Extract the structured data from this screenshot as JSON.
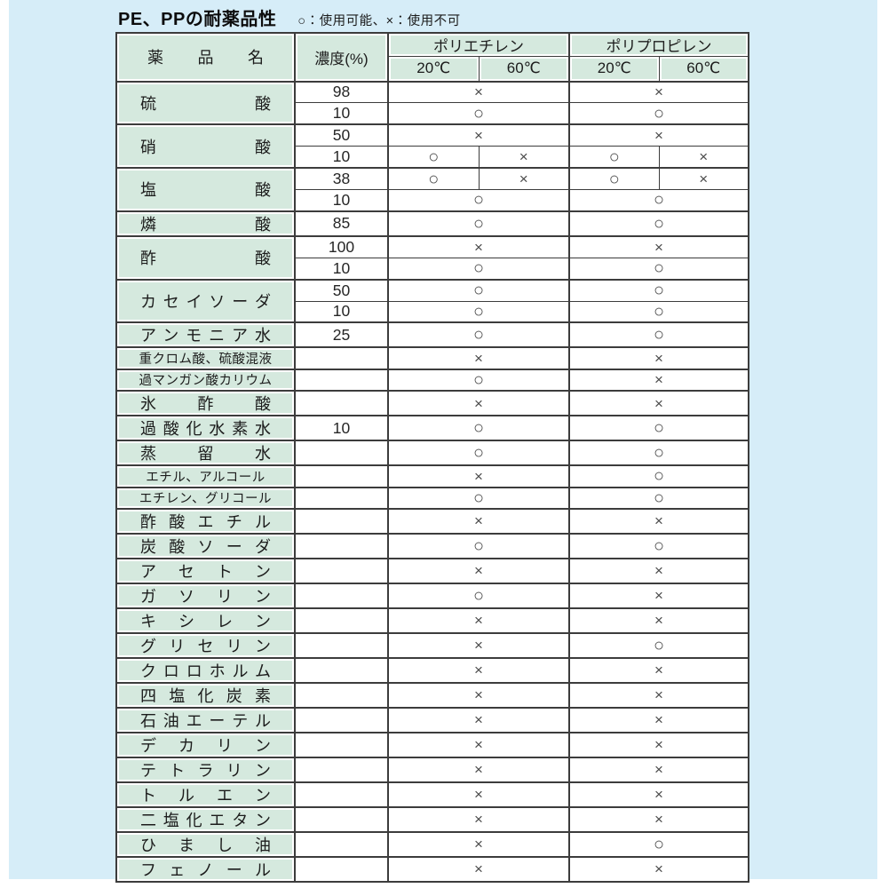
{
  "page": {
    "title": "PE、PPの耐薬品性",
    "legend": "○：使用可能、×：使用不可"
  },
  "table": {
    "headers": {
      "chemical": "薬品名",
      "concentration": "濃度(%)",
      "polyethylene": "ポリエチレン",
      "polypropylene": "ポリプロピレン",
      "temp_20": "20℃",
      "temp_60": "60℃"
    },
    "symbols": {
      "usable": "○",
      "not_usable": "×"
    },
    "groups": [
      {
        "name": "硫酸",
        "sub": [
          {
            "conc": "98",
            "pe": "×",
            "pp": "×"
          },
          {
            "conc": "10",
            "pe": "○",
            "pp": "○"
          }
        ]
      },
      {
        "name": "硝酸",
        "sub": [
          {
            "conc": "50",
            "pe": "×",
            "pp": "×"
          },
          {
            "conc": "10",
            "pe": [
              "○",
              "×"
            ],
            "pp": [
              "○",
              "×"
            ]
          }
        ]
      },
      {
        "name": "塩酸",
        "sub": [
          {
            "conc": "38",
            "pe": [
              "○",
              "×"
            ],
            "pp": [
              "○",
              "×"
            ]
          },
          {
            "conc": "10",
            "pe": "○",
            "pp": "○"
          }
        ]
      },
      {
        "name": "燐酸",
        "sub": [
          {
            "conc": "85",
            "pe": "○",
            "pp": "○"
          }
        ]
      },
      {
        "name": "酢酸",
        "sub": [
          {
            "conc": "100",
            "pe": "×",
            "pp": "×"
          },
          {
            "conc": "10",
            "pe": "○",
            "pp": "○"
          }
        ]
      },
      {
        "name": "カセイソーダ",
        "sub": [
          {
            "conc": "50",
            "pe": "○",
            "pp": "○"
          },
          {
            "conc": "10",
            "pe": "○",
            "pp": "○"
          }
        ]
      },
      {
        "name": "アンモニア水",
        "sub": [
          {
            "conc": "25",
            "pe": "○",
            "pp": "○"
          }
        ]
      },
      {
        "name": "重クロム酸、硫酸混液",
        "sub": [
          {
            "conc": "",
            "pe": "×",
            "pp": "×"
          }
        ]
      },
      {
        "name": "過マンガン酸カリウム",
        "sub": [
          {
            "conc": "",
            "pe": "○",
            "pp": "×"
          }
        ]
      },
      {
        "name": "氷酢酸",
        "sub": [
          {
            "conc": "",
            "pe": "×",
            "pp": "×"
          }
        ]
      },
      {
        "name": "過酸化水素水",
        "sub": [
          {
            "conc": "10",
            "pe": "○",
            "pp": "○"
          }
        ]
      },
      {
        "name": "蒸留水",
        "sub": [
          {
            "conc": "",
            "pe": "○",
            "pp": "○"
          }
        ]
      },
      {
        "name": "エチル、アルコール",
        "sub": [
          {
            "conc": "",
            "pe": "×",
            "pp": "○"
          }
        ]
      },
      {
        "name": "エチレン、グリコール",
        "sub": [
          {
            "conc": "",
            "pe": "○",
            "pp": "○"
          }
        ]
      },
      {
        "name": "酢酸エチル",
        "sub": [
          {
            "conc": "",
            "pe": "×",
            "pp": "×"
          }
        ]
      },
      {
        "name": "炭酸ソーダ",
        "sub": [
          {
            "conc": "",
            "pe": "○",
            "pp": "○"
          }
        ]
      },
      {
        "name": "アセトン",
        "sub": [
          {
            "conc": "",
            "pe": "×",
            "pp": "×"
          }
        ]
      },
      {
        "name": "ガソリン",
        "sub": [
          {
            "conc": "",
            "pe": "○",
            "pp": "×"
          }
        ]
      },
      {
        "name": "キシレン",
        "sub": [
          {
            "conc": "",
            "pe": "×",
            "pp": "×"
          }
        ]
      },
      {
        "name": "グリセリン",
        "sub": [
          {
            "conc": "",
            "pe": "×",
            "pp": "○"
          }
        ]
      },
      {
        "name": "クロロホルム",
        "sub": [
          {
            "conc": "",
            "pe": "×",
            "pp": "×"
          }
        ]
      },
      {
        "name": "四塩化炭素",
        "sub": [
          {
            "conc": "",
            "pe": "×",
            "pp": "×"
          }
        ]
      },
      {
        "name": "石油エーテル",
        "sub": [
          {
            "conc": "",
            "pe": "×",
            "pp": "×"
          }
        ]
      },
      {
        "name": "デカリン",
        "sub": [
          {
            "conc": "",
            "pe": "×",
            "pp": "×"
          }
        ]
      },
      {
        "name": "テトラリン",
        "sub": [
          {
            "conc": "",
            "pe": "×",
            "pp": "×"
          }
        ]
      },
      {
        "name": "トルエン",
        "sub": [
          {
            "conc": "",
            "pe": "×",
            "pp": "×"
          }
        ]
      },
      {
        "name": "二塩化エタン",
        "sub": [
          {
            "conc": "",
            "pe": "×",
            "pp": "×"
          }
        ]
      },
      {
        "name": "ひまし油",
        "sub": [
          {
            "conc": "",
            "pe": "×",
            "pp": "○"
          }
        ]
      },
      {
        "name": "フェノール",
        "sub": [
          {
            "conc": "",
            "pe": "×",
            "pp": "×"
          }
        ]
      }
    ]
  },
  "colors": {
    "page_bg": "#d6edf8",
    "cell_green": "#d5e9de",
    "border": "#3c3c3c",
    "margin_white": "#ffffff"
  }
}
